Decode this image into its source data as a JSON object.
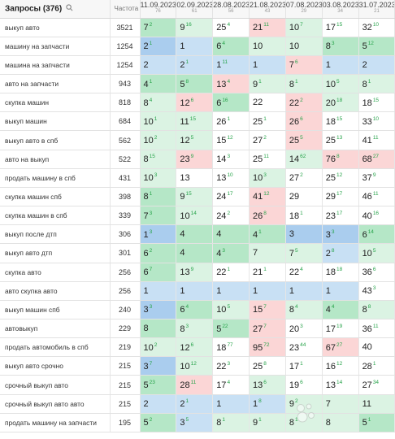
{
  "header": {
    "query_title": "Запросы (376)",
    "freq_label": "Частота",
    "dates": [
      {
        "date": "11.09.2023",
        "sub": "76"
      },
      {
        "date": "02.09.2023",
        "sub": "61"
      },
      {
        "date": "28.08.2023",
        "sub": "56"
      },
      {
        "date": "21.08.2023",
        "sub": "43"
      },
      {
        "date": "07.08.2023",
        "sub": "29"
      },
      {
        "date": "03.08.2023",
        "sub": "34"
      },
      {
        "date": "31.07.2023",
        "sub": "21"
      }
    ]
  },
  "rows": [
    {
      "query": "выкуп авто",
      "freq": "3521",
      "cells": [
        {
          "v": "7",
          "d": "2",
          "c": "G"
        },
        {
          "v": "9",
          "d": "16",
          "c": "g"
        },
        {
          "v": "25",
          "d": "4",
          "c": "w"
        },
        {
          "v": "21",
          "d": "11",
          "c": "r"
        },
        {
          "v": "10",
          "d": "7",
          "c": "g"
        },
        {
          "v": "17",
          "d": "15",
          "c": "w"
        },
        {
          "v": "32",
          "d": "10",
          "c": "w"
        }
      ]
    },
    {
      "query": "машину на запчасти",
      "freq": "1254",
      "cells": [
        {
          "v": "2",
          "d": "1",
          "c": "B"
        },
        {
          "v": "1",
          "d": "",
          "c": "b"
        },
        {
          "v": "6",
          "d": "4",
          "c": "G"
        },
        {
          "v": "10",
          "d": "",
          "c": "g"
        },
        {
          "v": "10",
          "d": "",
          "c": "g"
        },
        {
          "v": "8",
          "d": "3",
          "c": "G"
        },
        {
          "v": "5",
          "d": "12",
          "c": "G"
        }
      ]
    },
    {
      "query": "машина на запчасти",
      "freq": "1254",
      "cells": [
        {
          "v": "2",
          "d": "",
          "c": "b"
        },
        {
          "v": "2",
          "d": "1",
          "c": "b"
        },
        {
          "v": "1",
          "d": "11",
          "c": "b"
        },
        {
          "v": "1",
          "d": "",
          "c": "b"
        },
        {
          "v": "7",
          "d": "6",
          "c": "r"
        },
        {
          "v": "1",
          "d": "",
          "c": "b"
        },
        {
          "v": "2",
          "d": "",
          "c": "b"
        }
      ]
    },
    {
      "query": "авто на запчасти",
      "freq": "943",
      "cells": [
        {
          "v": "4",
          "d": "1",
          "c": "G"
        },
        {
          "v": "5",
          "d": "8",
          "c": "G"
        },
        {
          "v": "13",
          "d": "4",
          "c": "r"
        },
        {
          "v": "9",
          "d": "1",
          "c": "g"
        },
        {
          "v": "8",
          "d": "1",
          "c": "g"
        },
        {
          "v": "10",
          "d": "5",
          "c": "g"
        },
        {
          "v": "8",
          "d": "1",
          "c": "g"
        }
      ]
    },
    {
      "query": "скупка машин",
      "freq": "818",
      "cells": [
        {
          "v": "8",
          "d": "4",
          "c": "g"
        },
        {
          "v": "12",
          "d": "6",
          "c": "r"
        },
        {
          "v": "6",
          "d": "16",
          "c": "G"
        },
        {
          "v": "22",
          "d": "",
          "c": "w"
        },
        {
          "v": "22",
          "d": "2",
          "c": "r"
        },
        {
          "v": "20",
          "d": "18",
          "c": "g"
        },
        {
          "v": "18",
          "d": "15",
          "c": "w"
        }
      ]
    },
    {
      "query": "выкуп машин",
      "freq": "684",
      "cells": [
        {
          "v": "10",
          "d": "1",
          "c": "g"
        },
        {
          "v": "11",
          "d": "15",
          "c": "g"
        },
        {
          "v": "26",
          "d": "1",
          "c": "w"
        },
        {
          "v": "25",
          "d": "1",
          "c": "w"
        },
        {
          "v": "26",
          "d": "6",
          "c": "r"
        },
        {
          "v": "18",
          "d": "15",
          "c": "w"
        },
        {
          "v": "33",
          "d": "10",
          "c": "w"
        }
      ]
    },
    {
      "query": "выкуп авто в спб",
      "freq": "562",
      "cells": [
        {
          "v": "10",
          "d": "2",
          "c": "g"
        },
        {
          "v": "12",
          "d": "5",
          "c": "g"
        },
        {
          "v": "15",
          "d": "12",
          "c": "w"
        },
        {
          "v": "27",
          "d": "2",
          "c": "w"
        },
        {
          "v": "25",
          "d": "5",
          "c": "r"
        },
        {
          "v": "25",
          "d": "13",
          "c": "w"
        },
        {
          "v": "41",
          "d": "11",
          "c": "w"
        }
      ]
    },
    {
      "query": "авто на выкуп",
      "freq": "522",
      "cells": [
        {
          "v": "8",
          "d": "15",
          "c": "g"
        },
        {
          "v": "23",
          "d": "9",
          "c": "r"
        },
        {
          "v": "14",
          "d": "3",
          "c": "w"
        },
        {
          "v": "25",
          "d": "11",
          "c": "w"
        },
        {
          "v": "14",
          "d": "62",
          "c": "g"
        },
        {
          "v": "76",
          "d": "8",
          "c": "r"
        },
        {
          "v": "68",
          "d": "27",
          "c": "r"
        }
      ]
    },
    {
      "query": "продать машину в спб",
      "freq": "431",
      "cells": [
        {
          "v": "10",
          "d": "3",
          "c": "g"
        },
        {
          "v": "13",
          "d": "",
          "c": "w"
        },
        {
          "v": "13",
          "d": "10",
          "c": "w"
        },
        {
          "v": "10",
          "d": "3",
          "c": "g"
        },
        {
          "v": "27",
          "d": "2",
          "c": "w"
        },
        {
          "v": "25",
          "d": "12",
          "c": "w"
        },
        {
          "v": "37",
          "d": "9",
          "c": "w"
        }
      ]
    },
    {
      "query": "скупка машин спб",
      "freq": "398",
      "cells": [
        {
          "v": "8",
          "d": "1",
          "c": "G"
        },
        {
          "v": "9",
          "d": "15",
          "c": "g"
        },
        {
          "v": "24",
          "d": "17",
          "c": "w"
        },
        {
          "v": "41",
          "d": "12",
          "c": "r"
        },
        {
          "v": "29",
          "d": "",
          "c": "w"
        },
        {
          "v": "29",
          "d": "17",
          "c": "w"
        },
        {
          "v": "46",
          "d": "11",
          "c": "w"
        }
      ]
    },
    {
      "query": "скупка машин в спб",
      "freq": "339",
      "cells": [
        {
          "v": "7",
          "d": "3",
          "c": "G"
        },
        {
          "v": "10",
          "d": "14",
          "c": "g"
        },
        {
          "v": "24",
          "d": "2",
          "c": "w"
        },
        {
          "v": "26",
          "d": "8",
          "c": "r"
        },
        {
          "v": "18",
          "d": "1",
          "c": "w"
        },
        {
          "v": "23",
          "d": "17",
          "c": "w"
        },
        {
          "v": "40",
          "d": "16",
          "c": "w"
        }
      ]
    },
    {
      "query": "выкуп после дтп",
      "freq": "306",
      "cells": [
        {
          "v": "1",
          "d": "3",
          "c": "B"
        },
        {
          "v": "4",
          "d": "",
          "c": "G"
        },
        {
          "v": "4",
          "d": "",
          "c": "G"
        },
        {
          "v": "4",
          "d": "1",
          "c": "G"
        },
        {
          "v": "3",
          "d": "",
          "c": "B"
        },
        {
          "v": "3",
          "d": "3",
          "c": "B"
        },
        {
          "v": "6",
          "d": "14",
          "c": "G"
        }
      ]
    },
    {
      "query": "выкуп авто дтп",
      "freq": "301",
      "cells": [
        {
          "v": "6",
          "d": "2",
          "c": "G"
        },
        {
          "v": "4",
          "d": "",
          "c": "G"
        },
        {
          "v": "4",
          "d": "3",
          "c": "G"
        },
        {
          "v": "7",
          "d": "",
          "c": "g"
        },
        {
          "v": "7",
          "d": "5",
          "c": "g"
        },
        {
          "v": "2",
          "d": "8",
          "c": "b"
        },
        {
          "v": "10",
          "d": "5",
          "c": "g"
        }
      ]
    },
    {
      "query": "скупка авто",
      "freq": "256",
      "cells": [
        {
          "v": "6",
          "d": "7",
          "c": "G"
        },
        {
          "v": "13",
          "d": "9",
          "c": "g"
        },
        {
          "v": "22",
          "d": "1",
          "c": "w"
        },
        {
          "v": "21",
          "d": "1",
          "c": "w"
        },
        {
          "v": "22",
          "d": "4",
          "c": "w"
        },
        {
          "v": "18",
          "d": "18",
          "c": "w"
        },
        {
          "v": "36",
          "d": "6",
          "c": "w"
        }
      ]
    },
    {
      "query": "авто скупка авто",
      "freq": "256",
      "cells": [
        {
          "v": "1",
          "d": "",
          "c": "b"
        },
        {
          "v": "1",
          "d": "",
          "c": "b"
        },
        {
          "v": "1",
          "d": "",
          "c": "b"
        },
        {
          "v": "1",
          "d": "",
          "c": "b"
        },
        {
          "v": "1",
          "d": "",
          "c": "b"
        },
        {
          "v": "1",
          "d": "",
          "c": "b"
        },
        {
          "v": "43",
          "d": "3",
          "c": "w"
        }
      ]
    },
    {
      "query": "выкуп машин спб",
      "freq": "240",
      "cells": [
        {
          "v": "3",
          "d": "3",
          "c": "B"
        },
        {
          "v": "6",
          "d": "4",
          "c": "G"
        },
        {
          "v": "10",
          "d": "5",
          "c": "g"
        },
        {
          "v": "15",
          "d": "7",
          "c": "r"
        },
        {
          "v": "8",
          "d": "4",
          "c": "g"
        },
        {
          "v": "4",
          "d": "4",
          "c": "G"
        },
        {
          "v": "8",
          "d": "8",
          "c": "g"
        }
      ]
    },
    {
      "query": "автовыкуп",
      "freq": "229",
      "cells": [
        {
          "v": "8",
          "d": "",
          "c": "G"
        },
        {
          "v": "8",
          "d": "3",
          "c": "g"
        },
        {
          "v": "5",
          "d": "22",
          "c": "G"
        },
        {
          "v": "27",
          "d": "7",
          "c": "r"
        },
        {
          "v": "20",
          "d": "3",
          "c": "w"
        },
        {
          "v": "17",
          "d": "19",
          "c": "w"
        },
        {
          "v": "36",
          "d": "11",
          "c": "w"
        }
      ]
    },
    {
      "query": "продать автомобиль в спб",
      "freq": "219",
      "cells": [
        {
          "v": "10",
          "d": "2",
          "c": "g"
        },
        {
          "v": "12",
          "d": "6",
          "c": "g"
        },
        {
          "v": "18",
          "d": "77",
          "c": "w"
        },
        {
          "v": "95",
          "d": "72",
          "c": "r"
        },
        {
          "v": "23",
          "d": "44",
          "c": "w"
        },
        {
          "v": "67",
          "d": "27",
          "c": "r"
        },
        {
          "v": "40",
          "d": "",
          "c": "w"
        }
      ]
    },
    {
      "query": "выкуп авто срочно",
      "freq": "215",
      "cells": [
        {
          "v": "3",
          "d": "7",
          "c": "B"
        },
        {
          "v": "10",
          "d": "12",
          "c": "g"
        },
        {
          "v": "22",
          "d": "3",
          "c": "w"
        },
        {
          "v": "25",
          "d": "8",
          "c": "w"
        },
        {
          "v": "17",
          "d": "1",
          "c": "w"
        },
        {
          "v": "16",
          "d": "12",
          "c": "w"
        },
        {
          "v": "28",
          "d": "1",
          "c": "w"
        }
      ]
    },
    {
      "query": "срочный выкуп авто",
      "freq": "215",
      "cells": [
        {
          "v": "5",
          "d": "23",
          "c": "G"
        },
        {
          "v": "28",
          "d": "11",
          "c": "r"
        },
        {
          "v": "17",
          "d": "4",
          "c": "w"
        },
        {
          "v": "13",
          "d": "6",
          "c": "g"
        },
        {
          "v": "19",
          "d": "6",
          "c": "w"
        },
        {
          "v": "13",
          "d": "14",
          "c": "w"
        },
        {
          "v": "27",
          "d": "34",
          "c": "w"
        }
      ]
    },
    {
      "query": "срочный выкуп авто авто",
      "freq": "215",
      "cells": [
        {
          "v": "2",
          "d": "",
          "c": "b"
        },
        {
          "v": "2",
          "d": "1",
          "c": "b"
        },
        {
          "v": "1",
          "d": "",
          "c": "b"
        },
        {
          "v": "1",
          "d": "8",
          "c": "b"
        },
        {
          "v": "9",
          "d": "2",
          "c": "g"
        },
        {
          "v": "7",
          "d": "",
          "c": "g"
        },
        {
          "v": "11",
          "d": "",
          "c": "g"
        }
      ]
    },
    {
      "query": "продать машину на запчасти",
      "freq": "195",
      "cells": [
        {
          "v": "5",
          "d": "2",
          "c": "G"
        },
        {
          "v": "3",
          "d": "5",
          "c": "b"
        },
        {
          "v": "8",
          "d": "1",
          "c": "g"
        },
        {
          "v": "9",
          "d": "1",
          "c": "g"
        },
        {
          "v": "8",
          "d": "1",
          "c": "g"
        },
        {
          "v": "8",
          "d": "",
          "c": "g"
        },
        {
          "v": "5",
          "d": "1",
          "c": "G"
        }
      ]
    }
  ],
  "watermark": "Avito"
}
